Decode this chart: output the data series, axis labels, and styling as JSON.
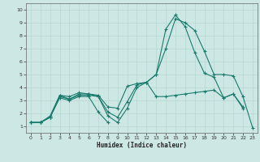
{
  "xlabel": "Humidex (Indice chaleur)",
  "background_color": "#cde8e4",
  "grid_color": "#b8d8d2",
  "line_color": "#1a7a6e",
  "xlim": [
    -0.5,
    23.5
  ],
  "ylim": [
    0.5,
    10.5
  ],
  "xticks": [
    0,
    1,
    2,
    3,
    4,
    5,
    6,
    7,
    8,
    9,
    10,
    11,
    12,
    13,
    14,
    15,
    16,
    17,
    18,
    19,
    20,
    21,
    22,
    23
  ],
  "yticks": [
    1,
    2,
    3,
    4,
    5,
    6,
    7,
    8,
    9,
    10
  ],
  "lines": [
    [
      1.3,
      1.3,
      1.8,
      3.4,
      3.1,
      3.5,
      3.5,
      3.3,
      1.8,
      1.3,
      2.4,
      4.0,
      4.4,
      5.0,
      8.5,
      9.6,
      8.7,
      6.7,
      5.1,
      4.8,
      3.2,
      3.5,
      2.5,
      null
    ],
    [
      1.3,
      1.3,
      1.7,
      3.4,
      3.3,
      3.6,
      3.5,
      3.4,
      2.5,
      2.4,
      4.1,
      4.3,
      4.4,
      5.0,
      7.0,
      9.3,
      9.0,
      8.4,
      6.8,
      5.0,
      5.0,
      4.9,
      3.3,
      0.9
    ],
    [
      1.3,
      1.3,
      1.7,
      3.3,
      3.1,
      3.4,
      3.4,
      3.3,
      2.1,
      1.7,
      2.9,
      4.2,
      4.4,
      3.3,
      3.3,
      3.4,
      3.5,
      3.6,
      3.7,
      3.8,
      3.2,
      3.5,
      2.4,
      null
    ],
    [
      1.3,
      1.3,
      1.7,
      3.2,
      3.0,
      3.3,
      3.3,
      2.1,
      1.3,
      null,
      null,
      null,
      null,
      null,
      null,
      null,
      null,
      null,
      null,
      null,
      null,
      null,
      null,
      null
    ]
  ]
}
